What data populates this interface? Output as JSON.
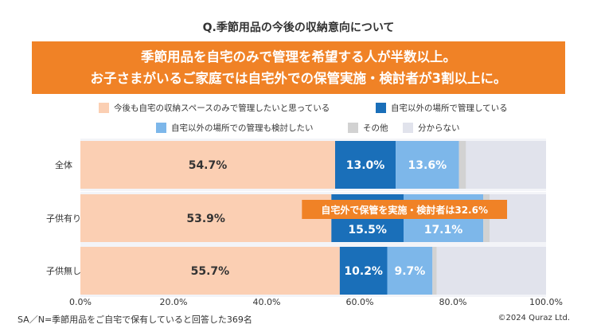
{
  "title": "Q.季節用品の今後の収納意向について",
  "banner": {
    "line1": "季節用品を自宅のみで管理を希望する人が半数以上。",
    "line2": "お子さまがいるご家庭では自宅外での保管実施・検討者が3割以上に。"
  },
  "colors": {
    "home_only": "#fbcfb3",
    "outside": "#1a6fb9",
    "consider": "#7db7ea",
    "other": "#d2d2d2",
    "unknown": "#e1e3ec",
    "banner": "#f08226"
  },
  "chart_data": {
    "type": "bar",
    "orientation": "horizontal",
    "stacked": true,
    "categories": [
      "全体",
      "子供有り",
      "子供無し"
    ],
    "series": [
      {
        "name": "今後も自宅の収納スペースのみで管理したいと思っている",
        "values": [
          54.7,
          53.9,
          55.7
        ],
        "labels": [
          "54.7%",
          "53.9%",
          "55.7%"
        ]
      },
      {
        "name": "自宅以外の場所で管理している",
        "values": [
          13.0,
          15.5,
          10.2
        ],
        "labels": [
          "13.0%",
          "15.5%",
          "10.2%"
        ]
      },
      {
        "name": "自宅以外の場所での管理も検討したい",
        "values": [
          13.6,
          17.1,
          9.7
        ],
        "labels": [
          "13.6%",
          "17.1%",
          "9.7%"
        ]
      },
      {
        "name": "その他",
        "values": [
          1.5,
          1.4,
          0.9
        ],
        "labels": [
          "",
          "",
          ""
        ]
      },
      {
        "name": "分からない",
        "values": [
          17.2,
          12.1,
          23.5
        ],
        "labels": [
          "",
          "",
          ""
        ]
      }
    ],
    "xlim": [
      0,
      100
    ],
    "xticks": [
      "0.0%",
      "20.0%",
      "40.0%",
      "60.0%",
      "80.0%",
      "100.0%"
    ],
    "annotation": {
      "text": "自宅外で保管を実施・検討者は32.6%",
      "category": "子供有り"
    }
  },
  "footnote": "SA／N=季節用品をご自宅で保有していると回答した369名",
  "copyright": "©2024 Quraz Ltd."
}
